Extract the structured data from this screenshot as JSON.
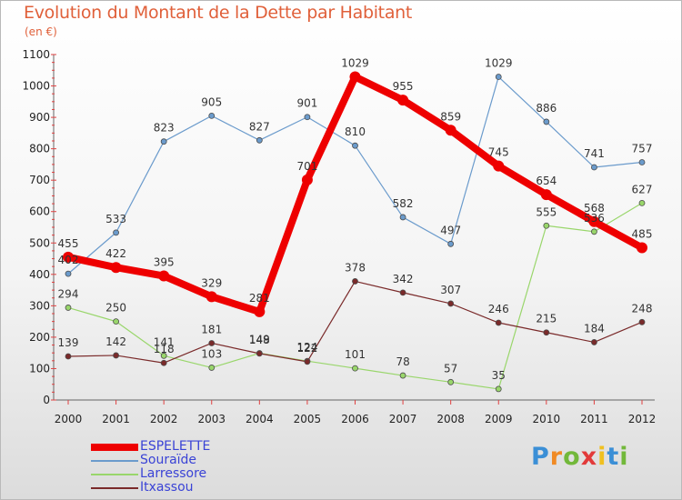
{
  "chart_data": {
    "type": "line",
    "title": "Evolution du Montant de la Dette par Habitant",
    "subtitle": "(en €)",
    "x": [
      2000,
      2001,
      2002,
      2003,
      2004,
      2005,
      2006,
      2007,
      2008,
      2009,
      2010,
      2011,
      2012
    ],
    "x_tick_labels": [
      "2000",
      "2001",
      "2002",
      "2003",
      "2004",
      "2005",
      "2006",
      "2007",
      "2008",
      "2009",
      "2010",
      "2011",
      "2012"
    ],
    "ylim": [
      0,
      1100
    ],
    "y_ticks": [
      0,
      100,
      200,
      300,
      400,
      500,
      600,
      700,
      800,
      900,
      1000,
      1100
    ],
    "grid": false,
    "legend_position": "bottom-left",
    "series": [
      {
        "name": "ESPELETTE",
        "color": "#ee0000",
        "emphasis": true,
        "values": [
          455,
          422,
          395,
          329,
          281,
          701,
          1029,
          955,
          859,
          745,
          654,
          568,
          485
        ],
        "labels": [
          "455",
          "422",
          "395",
          "329",
          "281",
          "701",
          "1029",
          "955",
          "859",
          "745",
          "654",
          "568",
          "485"
        ]
      },
      {
        "name": "Souraïde",
        "color": "#6b9bcc",
        "emphasis": false,
        "values": [
          402,
          533,
          823,
          905,
          827,
          901,
          810,
          582,
          497,
          1029,
          886,
          741,
          757
        ],
        "labels": [
          "402",
          "533",
          "823",
          "905",
          "827",
          "901",
          "810",
          "582",
          "497",
          "1029",
          "886",
          "741",
          "757"
        ]
      },
      {
        "name": "Larressore",
        "color": "#99d66b",
        "emphasis": false,
        "values": [
          294,
          250,
          141,
          103,
          149,
          124,
          101,
          78,
          57,
          35,
          555,
          536,
          627
        ],
        "labels": [
          "294",
          "250",
          "141",
          "103",
          "149",
          "124",
          "101",
          "78",
          "57",
          "35",
          "555",
          "536",
          "627"
        ]
      },
      {
        "name": "Itxassou",
        "color": "#7a2a2a",
        "emphasis": false,
        "values": [
          139,
          142,
          118,
          181,
          148,
          122,
          378,
          342,
          307,
          246,
          215,
          184,
          248
        ],
        "labels": [
          "139",
          "142",
          "118",
          "181",
          "148",
          "122",
          "378",
          "342",
          "307",
          "246",
          "215",
          "184",
          "248"
        ]
      }
    ]
  },
  "logo": {
    "letters": [
      "P",
      "r",
      "o",
      "x",
      "i",
      "t",
      "i"
    ],
    "colors": [
      "#3b8fd6",
      "#f08a24",
      "#72b83a",
      "#e23a3a",
      "#f0c020",
      "#3b8fd6",
      "#72b83a"
    ]
  }
}
